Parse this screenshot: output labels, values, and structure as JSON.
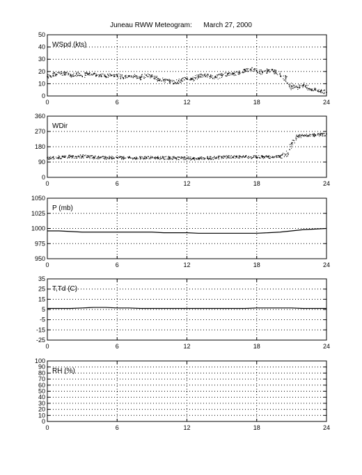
{
  "figure": {
    "title": "Juneau RWW Meteogram:      March 27, 2000"
  },
  "colors": {
    "axes": "#000000",
    "grid": "#000000",
    "data": "#000000",
    "background": "#ffffff"
  },
  "chart_data": [
    {
      "type": "scatter",
      "id": "wspd",
      "panel_label": "WSpd (kts)",
      "xlim": [
        0,
        24
      ],
      "ylim": [
        0,
        50
      ],
      "xticks": [
        0,
        6,
        12,
        18,
        24
      ],
      "yticks": [
        0,
        10,
        20,
        30,
        40,
        50
      ],
      "grid": true,
      "series": [
        {
          "x": [
            0,
            0.5,
            1,
            1.5,
            2,
            2.5,
            3,
            3.5,
            4,
            4.5,
            5,
            5.5,
            6,
            6.5,
            7,
            7.5,
            8,
            8.5,
            9,
            9.5,
            10,
            10.5,
            11,
            11.5,
            12,
            12.5,
            13,
            13.5,
            14,
            14.5,
            15,
            15.5,
            16,
            16.5,
            17,
            17.5,
            18,
            18.5,
            19,
            19.5,
            20,
            20.5,
            21,
            21.5,
            22,
            22.5,
            23,
            23.5,
            24
          ],
          "y": [
            16,
            17,
            19,
            18,
            17,
            18,
            16,
            18,
            18,
            17,
            16,
            17,
            17,
            15,
            16,
            16,
            15,
            17,
            16,
            14,
            13,
            12,
            11,
            13,
            14,
            14,
            16,
            17,
            16,
            15,
            17,
            18,
            18,
            19,
            21,
            22,
            21,
            19,
            21,
            20,
            18,
            14,
            8,
            7,
            9,
            6,
            5,
            4,
            3
          ]
        }
      ]
    },
    {
      "type": "scatter",
      "id": "wdir",
      "panel_label": "WDir",
      "xlim": [
        0,
        24
      ],
      "ylim": [
        0,
        360
      ],
      "xticks": [
        0,
        6,
        12,
        18,
        24
      ],
      "yticks": [
        0,
        90,
        180,
        270,
        360
      ],
      "grid": true,
      "series": [
        {
          "x": [
            0,
            0.5,
            1,
            1.5,
            2,
            2.5,
            3,
            3.5,
            4,
            4.5,
            5,
            5.5,
            6,
            6.5,
            7,
            7.5,
            8,
            8.5,
            9,
            9.5,
            10,
            10.5,
            11,
            11.5,
            12,
            12.5,
            13,
            13.5,
            14,
            14.5,
            15,
            15.5,
            16,
            16.5,
            17,
            17.5,
            18,
            18.5,
            19,
            19.5,
            20,
            20.5,
            21,
            21.5,
            22,
            22.5,
            23,
            23.5,
            24
          ],
          "y": [
            115,
            117,
            118,
            120,
            122,
            121,
            124,
            120,
            118,
            117,
            116,
            116,
            116,
            115,
            115,
            115,
            116,
            116,
            115,
            115,
            114,
            114,
            113,
            112,
            111,
            110,
            110,
            112,
            113,
            115,
            118,
            120,
            120,
            120,
            120,
            120,
            120,
            120,
            120,
            120,
            121,
            135,
            200,
            240,
            245,
            245,
            248,
            250,
            255
          ]
        }
      ]
    },
    {
      "type": "line",
      "id": "pressure",
      "panel_label": "P (mb)",
      "xlim": [
        0,
        24
      ],
      "ylim": [
        950,
        1050
      ],
      "xticks": [
        0,
        6,
        12,
        18,
        24
      ],
      "yticks": [
        950,
        975,
        1000,
        1025,
        1050
      ],
      "grid": true,
      "series": [
        {
          "x": [
            0,
            1,
            2,
            3,
            4,
            5,
            6,
            7,
            8,
            9,
            10,
            11,
            12,
            13,
            14,
            15,
            16,
            17,
            18,
            19,
            20,
            21,
            22,
            23,
            24
          ],
          "y": [
            996,
            996,
            995,
            994,
            994,
            994,
            994,
            994,
            994,
            994,
            993,
            993,
            993,
            992,
            992,
            992,
            992,
            992,
            992,
            993,
            994,
            996,
            998,
            999,
            1000
          ]
        }
      ]
    },
    {
      "type": "line",
      "id": "temperature",
      "panel_label": "T,Td (C)",
      "xlim": [
        0,
        24
      ],
      "ylim": [
        -25,
        35
      ],
      "xticks": [
        0,
        6,
        12,
        18,
        24
      ],
      "yticks": [
        -25,
        -15,
        -5,
        5,
        15,
        25,
        35
      ],
      "grid": true,
      "series": [
        {
          "x": [
            0,
            1,
            2,
            3,
            4,
            5,
            6,
            7,
            8,
            9,
            10,
            11,
            12,
            13,
            14,
            15,
            16,
            17,
            18,
            19,
            20,
            21,
            22,
            23,
            24
          ],
          "y": [
            6,
            6,
            6,
            6.5,
            7,
            7,
            6.5,
            6.5,
            6,
            6,
            6,
            6,
            6,
            6,
            6,
            6,
            6,
            6,
            6.5,
            6.5,
            6.5,
            6.5,
            6,
            6,
            6
          ]
        }
      ]
    },
    {
      "type": "line",
      "id": "rh",
      "panel_label": "RH (%)",
      "xlim": [
        0,
        24
      ],
      "ylim": [
        0,
        100
      ],
      "xticks": [
        0,
        6,
        12,
        18,
        24
      ],
      "yticks": [
        0,
        10,
        20,
        30,
        40,
        50,
        60,
        70,
        80,
        90,
        100
      ],
      "grid": true,
      "series": []
    }
  ]
}
